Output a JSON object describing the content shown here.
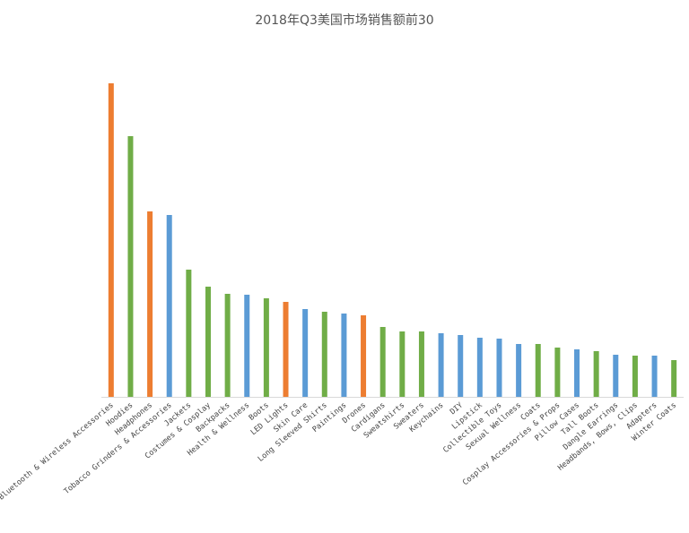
{
  "chart_data": {
    "type": "bar",
    "title": "2018年Q3美国市场销售额前30",
    "categories": [
      "Bluetooth & Wireless Accessories",
      "Hoodies",
      "Headphones",
      "Tobacco Grinders & Accessories",
      "Jackets",
      "Costumes & Cosplay",
      "Backpacks",
      "Health & Wellness",
      "Boots",
      "LED Lights",
      "Skin Care",
      "Long Sleeved Shirts",
      "Paintings",
      "Drones",
      "Cardigans",
      "Sweatshirts",
      "Sweaters",
      "Keychains",
      "DIY",
      "Lipstick",
      "Collectible Toys",
      "Sexual Wellness",
      "Coats",
      "Cosplay Accessories & Props",
      "Pillow Cases",
      "Tall Boots",
      "Dangle Earrings",
      "Headbands, Bows, Clips",
      "Adapters",
      "Winter Coats"
    ],
    "values": [
      350,
      291,
      207,
      203,
      142,
      123,
      115,
      114,
      110,
      106,
      98,
      95,
      93,
      91,
      78,
      73,
      73,
      71,
      69,
      66,
      65,
      59,
      59,
      55,
      53,
      51,
      47,
      46,
      46,
      41
    ],
    "colors": [
      "#ed7d31",
      "#70ad47",
      "#ed7d31",
      "#5b9bd5",
      "#70ad47",
      "#70ad47",
      "#70ad47",
      "#5b9bd5",
      "#70ad47",
      "#ed7d31",
      "#5b9bd5",
      "#70ad47",
      "#5b9bd5",
      "#ed7d31",
      "#70ad47",
      "#70ad47",
      "#70ad47",
      "#5b9bd5",
      "#5b9bd5",
      "#5b9bd5",
      "#5b9bd5",
      "#5b9bd5",
      "#70ad47",
      "#70ad47",
      "#5b9bd5",
      "#70ad47",
      "#5b9bd5",
      "#70ad47",
      "#5b9bd5",
      "#70ad47"
    ]
  }
}
